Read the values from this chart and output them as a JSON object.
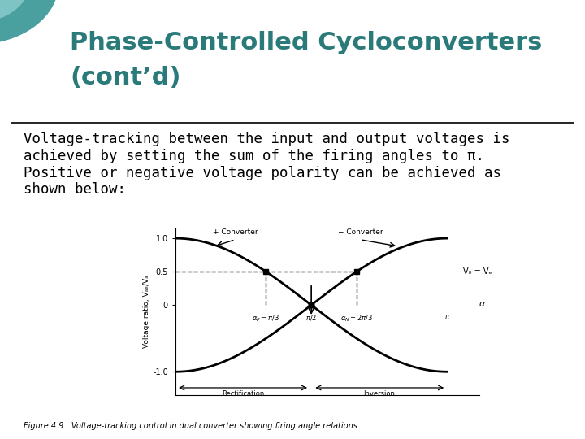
{
  "title_line1": "Phase-Controlled Cycloconverters",
  "title_line2": "(cont’d)",
  "title_color": "#2a7a7a",
  "title_fontsize": 22,
  "body_text": "Voltage-tracking between the input and output voltages is\nachieved by setting the sum of the firing angles to π.\nPositive or negative voltage polarity can be achieved as\nshown below:",
  "body_fontsize": 12.5,
  "figure_caption": "Figure 4.9   Voltage-tracking control in dual converter showing firing angle relations",
  "ylabel": "Voltage ratio, Vₐₑ/Vₐ",
  "plus_converter_label": "+ Converter",
  "minus_converter_label": "− Converter",
  "vdo_vd_label": "V₀ = Vₑ",
  "rectification_label": "Rectification",
  "inversion_label": "Inversion",
  "bg_color": "#ffffff"
}
